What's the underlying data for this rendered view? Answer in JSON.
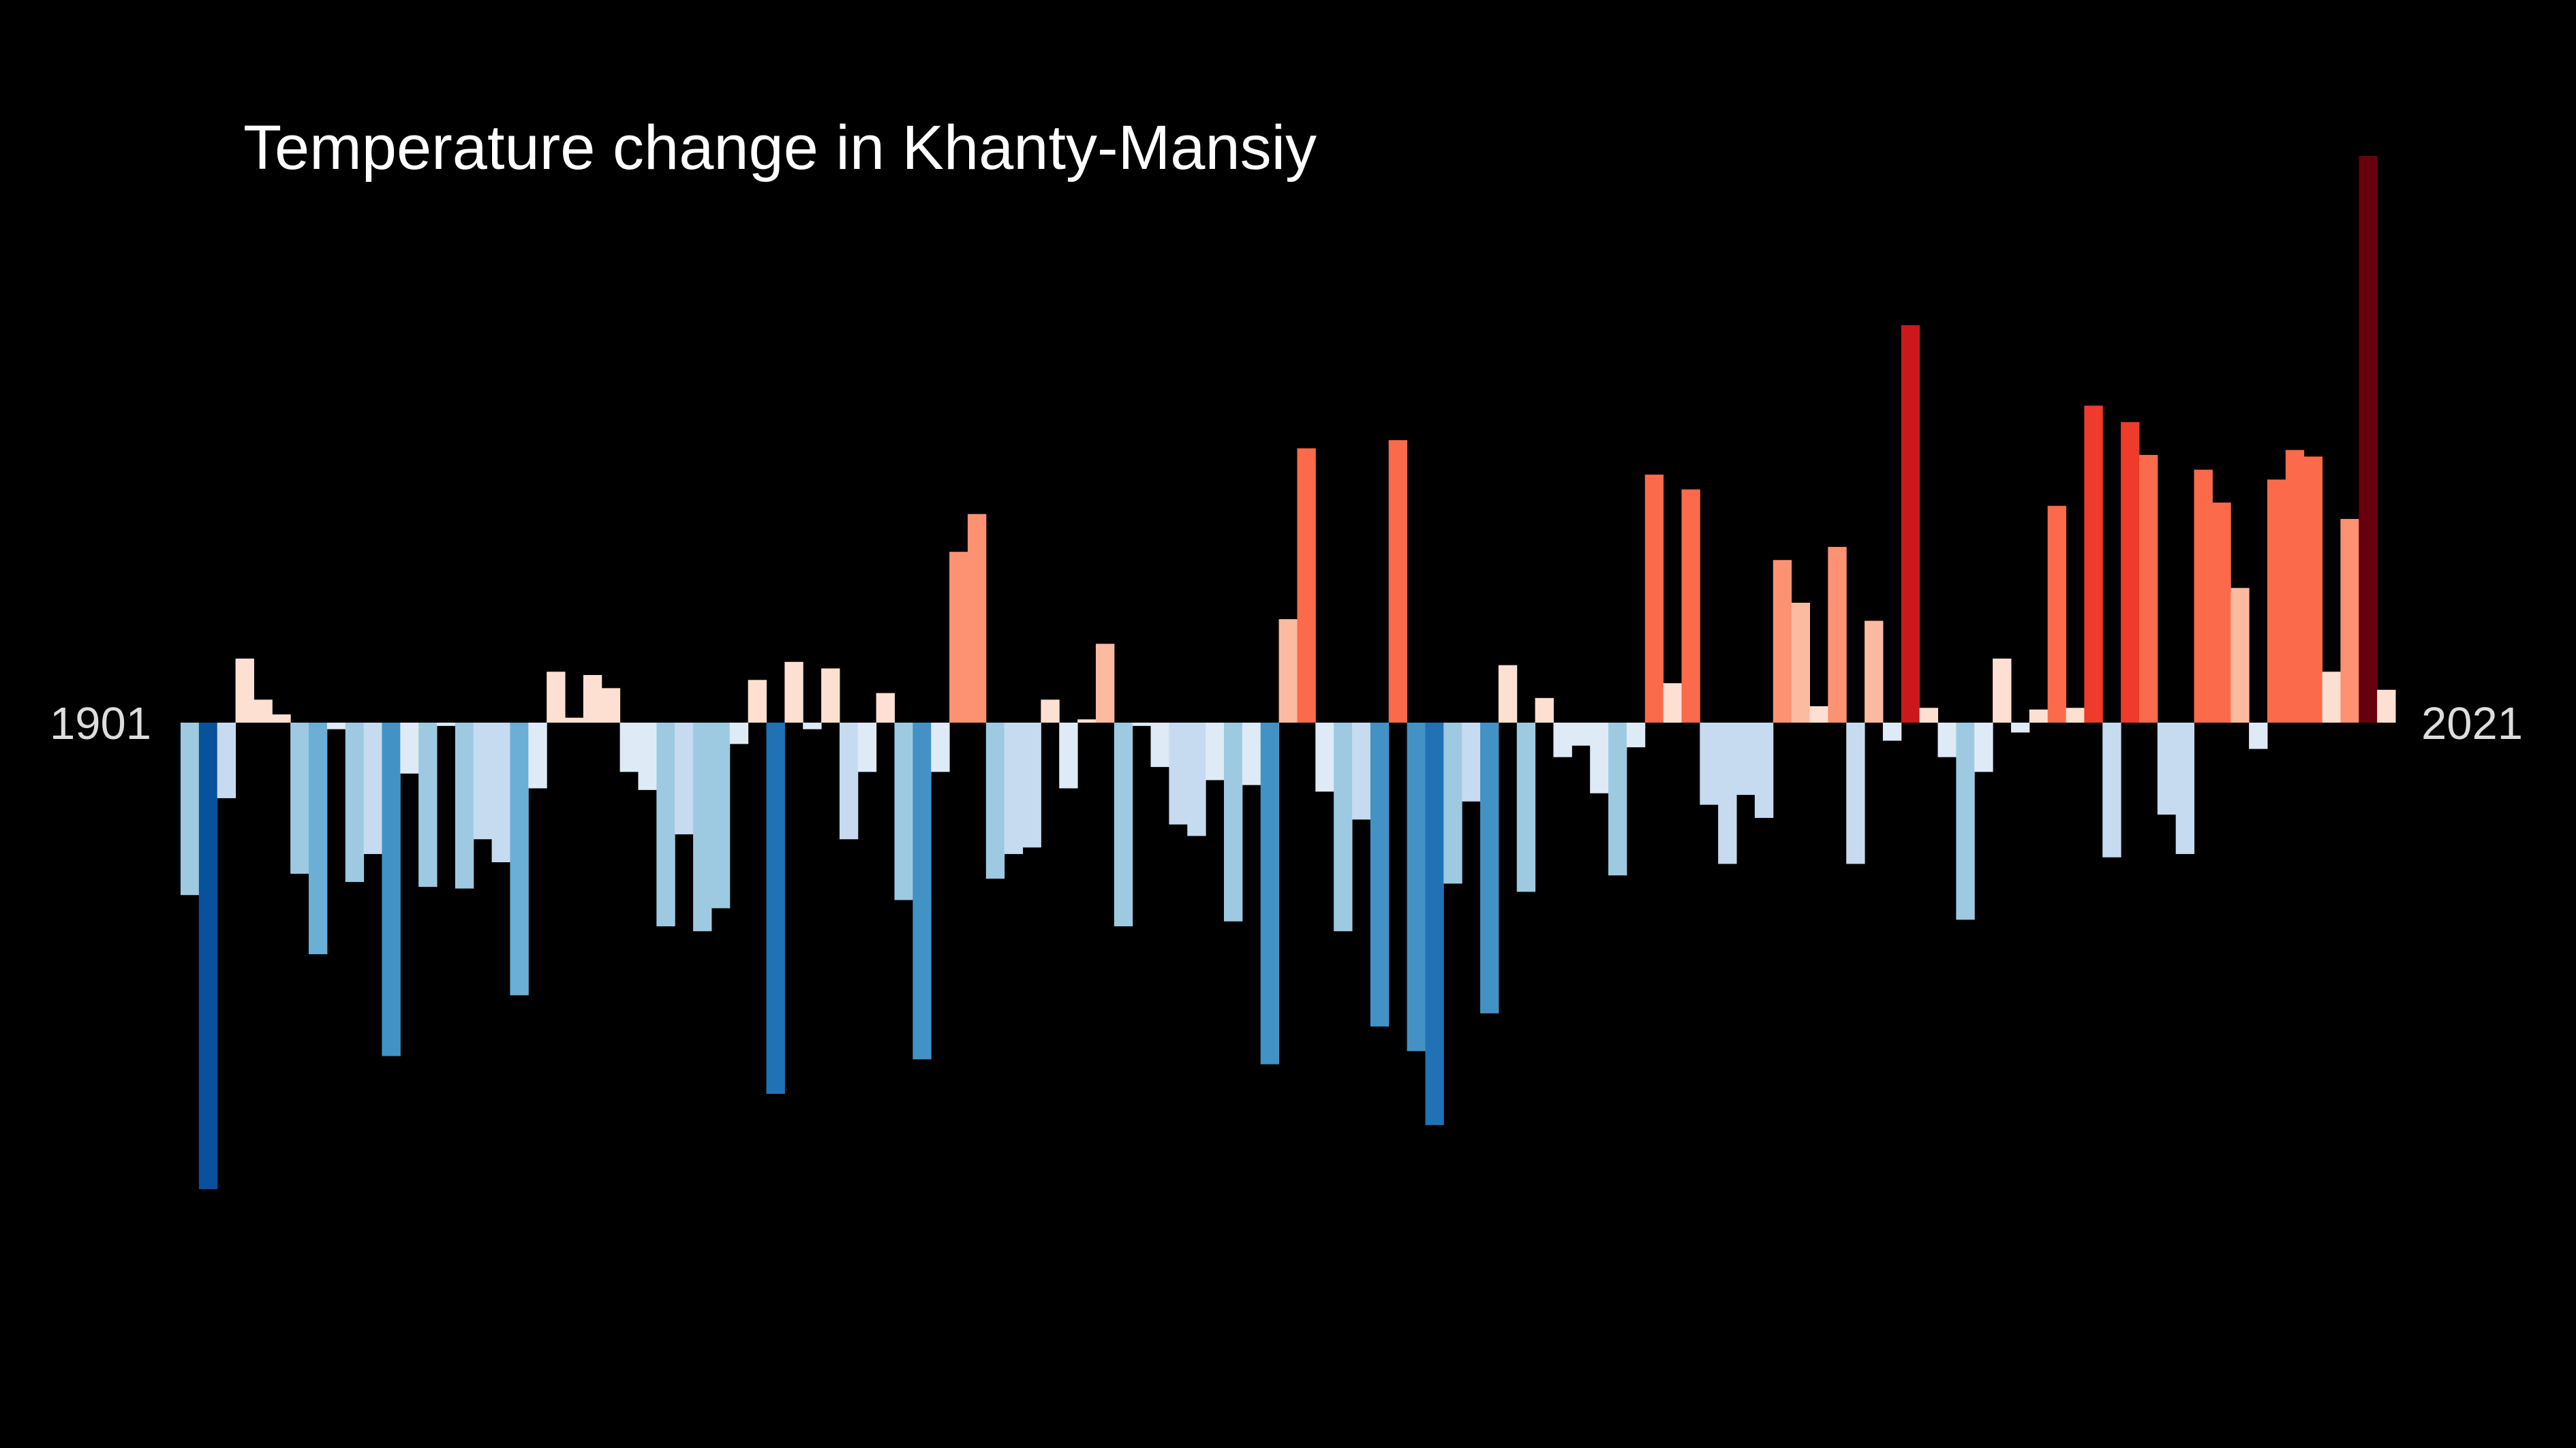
{
  "chart_data": {
    "type": "bar",
    "title": "Temperature change in Khanty-Mansiy",
    "categories": [
      "1901",
      null,
      null,
      null,
      null,
      null,
      null,
      null,
      null,
      null,
      null,
      null,
      null,
      null,
      null,
      null,
      null,
      null,
      null,
      null,
      null,
      null,
      null,
      null,
      null,
      null,
      null,
      null,
      null,
      null,
      null,
      null,
      null,
      null,
      null,
      null,
      null,
      null,
      null,
      null,
      null,
      null,
      null,
      null,
      null,
      null,
      null,
      null,
      null,
      null,
      null,
      null,
      null,
      null,
      null,
      null,
      null,
      null,
      null,
      null,
      null,
      null,
      null,
      null,
      null,
      null,
      null,
      null,
      null,
      null,
      null,
      null,
      null,
      null,
      null,
      null,
      null,
      null,
      null,
      null,
      null,
      null,
      null,
      null,
      null,
      null,
      null,
      null,
      null,
      null,
      null,
      null,
      null,
      null,
      null,
      null,
      null,
      null,
      null,
      null,
      null,
      null,
      null,
      null,
      null,
      null,
      null,
      null,
      null,
      null,
      null,
      null,
      null,
      null,
      null,
      null,
      null,
      null,
      null,
      null,
      "2021"
    ],
    "values": [
      -1.05,
      -2.84,
      -0.46,
      0.39,
      0.14,
      0.05,
      -0.92,
      -1.41,
      -0.04,
      -0.97,
      -0.8,
      -2.03,
      -0.31,
      -1.0,
      -0.02,
      -1.01,
      -0.71,
      -0.85,
      -1.66,
      -0.4,
      0.31,
      0.03,
      0.29,
      0.21,
      -0.3,
      -0.41,
      -1.24,
      -0.68,
      -1.27,
      -1.13,
      -0.13,
      0.26,
      -2.26,
      0.37,
      -0.04,
      0.33,
      -0.71,
      -0.3,
      0.18,
      -1.08,
      -2.05,
      -0.3,
      1.04,
      1.27,
      -0.95,
      -0.8,
      -0.76,
      0.14,
      -0.4,
      0.02,
      0.48,
      -1.24,
      -0.02,
      -0.27,
      -0.62,
      -0.69,
      -0.35,
      -1.21,
      -0.38,
      -2.08,
      0.63,
      1.67,
      -0.42,
      -1.27,
      -0.59,
      -1.85,
      1.72,
      -2.0,
      -2.45,
      -0.98,
      -0.48,
      -1.77,
      0.35,
      -1.03,
      0.15,
      -0.21,
      -0.14,
      -0.43,
      -0.93,
      -0.15,
      1.51,
      0.24,
      1.42,
      -0.5,
      -0.86,
      -0.44,
      -0.58,
      0.99,
      0.73,
      0.1,
      1.07,
      -0.86,
      0.62,
      -0.11,
      2.42,
      0.09,
      -0.21,
      -1.2,
      -0.3,
      0.39,
      -0.06,
      0.08,
      1.32,
      0.09,
      1.93,
      -0.82,
      1.83,
      1.63,
      -0.56,
      -0.8,
      1.54,
      1.34,
      0.82,
      -0.16,
      1.48,
      1.66,
      1.62,
      0.31,
      1.24,
      3.45,
      0.2
    ],
    "colors": [
      "#08306b",
      "#08519c",
      "#2171b5",
      "#4292c6",
      "#6baed6",
      "#9ecae1",
      "#c6dbef",
      "#deebf7",
      "#fee0d2",
      "#fcbba1",
      "#fc9272",
      "#fb6a4a",
      "#ef3b2c",
      "#cb181d",
      "#a50f15",
      "#67000d"
    ]
  }
}
